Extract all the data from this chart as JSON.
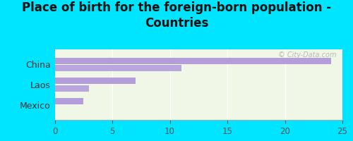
{
  "title": "Place of birth for the foreign-born population -\nCountries",
  "categories": [
    "China",
    "Laos",
    "Mexico"
  ],
  "bar1_values": [
    24,
    7,
    2.5
  ],
  "bar2_values": [
    11,
    3,
    0
  ],
  "bar_color": "#b39ddb",
  "xlim": [
    0,
    25
  ],
  "xticks": [
    0,
    5,
    10,
    15,
    20,
    25
  ],
  "background_outer": "#00e5ff",
  "background_inner": "#f0f7e6",
  "watermark": "© City-Data.com",
  "title_fontsize": 12,
  "tick_fontsize": 8.5,
  "label_fontsize": 9
}
